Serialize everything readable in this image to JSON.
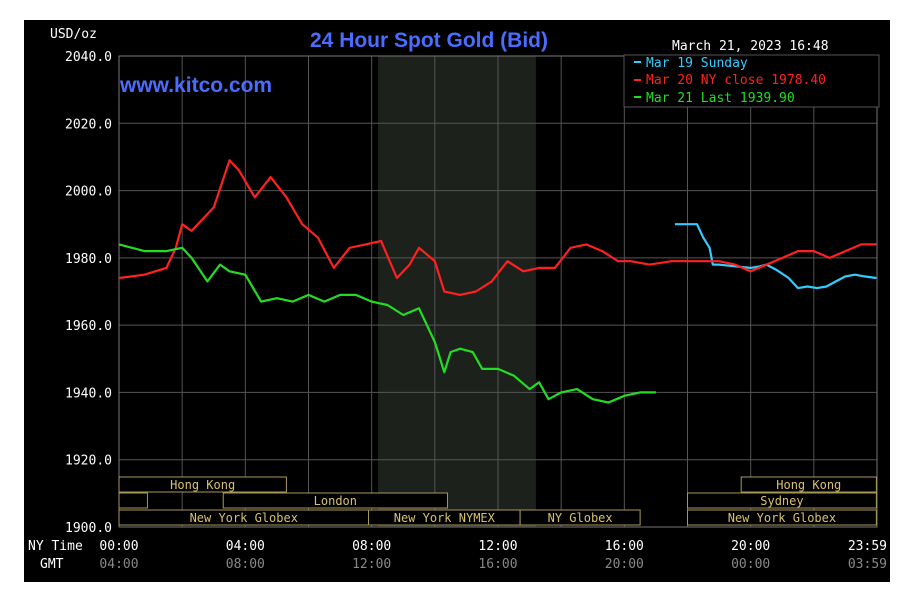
{
  "chart_data": {
    "type": "line",
    "title": "24 Hour Spot Gold (Bid)",
    "watermark": "www.kitco.com",
    "units_label": "USD/oz",
    "timestamp": "March 21, 2023 16:48",
    "ylim": [
      1900,
      2040
    ],
    "yticks": [
      "2040.0",
      "2020.0",
      "2000.0",
      "1980.0",
      "1960.0",
      "1940.0",
      "1920.0",
      "1900.0"
    ],
    "xlim": [
      0,
      24
    ],
    "ny_time_label": "NY Time",
    "gmt_label": "GMT",
    "ny_time_ticks": [
      "00:00",
      "04:00",
      "08:00",
      "12:00",
      "16:00",
      "20:00",
      "23:59"
    ],
    "gmt_ticks": [
      "04:00",
      "08:00",
      "12:00",
      "16:00",
      "20:00",
      "00:00",
      "03:59"
    ],
    "colors": {
      "background": "#000000",
      "grid": "#555555",
      "title": "#4a6cff",
      "cyan": "#33ccff",
      "red": "#ff2020",
      "green": "#22dd22",
      "nymex_shade": "#1c211c",
      "session_text": "#d8c070",
      "session_border": "#a89858",
      "axis_text": "#ffffff",
      "gmt_text": "#888888"
    },
    "series": [
      {
        "name": "Mar 19 Sunday",
        "color": "#33ccff",
        "x": [
          17.6,
          18.3,
          18.5,
          18.7,
          18.8,
          19.0,
          19.5,
          20.0,
          20.3,
          20.5,
          20.8,
          21.2,
          21.5,
          21.8,
          22.1,
          22.4,
          22.7,
          23.0,
          23.3,
          23.6,
          23.98
        ],
        "y": [
          1990.0,
          1990.0,
          1986.0,
          1983.0,
          1978.0,
          1978.0,
          1977.5,
          1977.0,
          1977.5,
          1978.0,
          1976.5,
          1974.0,
          1971.0,
          1971.5,
          1971.0,
          1971.5,
          1973.0,
          1974.5,
          1975.0,
          1974.5,
          1974.0
        ]
      },
      {
        "name": "Mar 20 NY close 1978.40",
        "color": "#ff2020",
        "x": [
          0.0,
          0.8,
          1.5,
          1.8,
          2.0,
          2.3,
          2.6,
          3.0,
          3.5,
          3.8,
          4.3,
          4.8,
          5.3,
          5.8,
          6.3,
          6.8,
          7.3,
          7.8,
          8.3,
          8.8,
          9.2,
          9.5,
          10.0,
          10.3,
          10.8,
          11.3,
          11.8,
          12.3,
          12.8,
          13.3,
          13.8,
          14.3,
          14.8,
          15.3,
          15.8,
          16.2,
          16.8,
          17.5,
          18.5,
          19.0,
          19.5,
          20.0,
          20.5,
          21.0,
          21.5,
          22.0,
          22.5,
          23.0,
          23.5,
          23.98
        ],
        "y": [
          1974.0,
          1975.0,
          1977.0,
          1983.0,
          1990.0,
          1988.0,
          1991.0,
          1995.0,
          2009.0,
          2006.0,
          1998.0,
          2004.0,
          1998.0,
          1990.0,
          1986.0,
          1977.0,
          1983.0,
          1984.0,
          1985.0,
          1974.0,
          1978.0,
          1983.0,
          1979.0,
          1970.0,
          1969.0,
          1970.0,
          1973.0,
          1979.0,
          1976.0,
          1977.0,
          1977.0,
          1983.0,
          1984.0,
          1982.0,
          1979.0,
          1979.0,
          1978.0,
          1979.0,
          1979.0,
          1979.0,
          1978.0,
          1976.0,
          1978.0,
          1980.0,
          1982.0,
          1982.0,
          1980.0,
          1982.0,
          1984.0,
          1984.0
        ]
      },
      {
        "name": "Mar 21 Last 1939.90",
        "color": "#22dd22",
        "x": [
          0.0,
          0.8,
          1.5,
          2.0,
          2.3,
          2.8,
          3.2,
          3.5,
          4.0,
          4.5,
          5.0,
          5.5,
          6.0,
          6.5,
          7.0,
          7.5,
          8.0,
          8.5,
          9.0,
          9.5,
          10.0,
          10.3,
          10.5,
          10.8,
          11.2,
          11.5,
          12.0,
          12.5,
          13.0,
          13.3,
          13.6,
          14.0,
          14.5,
          15.0,
          15.5,
          16.0,
          16.5,
          17.0
        ],
        "y": [
          1984.0,
          1982.0,
          1982.0,
          1983.0,
          1980.0,
          1973.0,
          1978.0,
          1976.0,
          1975.0,
          1967.0,
          1968.0,
          1967.0,
          1969.0,
          1967.0,
          1969.0,
          1969.0,
          1967.0,
          1966.0,
          1963.0,
          1965.0,
          1955.0,
          1946.0,
          1952.0,
          1953.0,
          1952.0,
          1947.0,
          1947.0,
          1945.0,
          1941.0,
          1943.0,
          1938.0,
          1940.0,
          1941.0,
          1938.0,
          1937.0,
          1939.0,
          1940.0,
          1940.0
        ]
      }
    ],
    "nymex_shade": [
      8.2,
      13.2
    ],
    "sessions": {
      "row1": [
        {
          "label": "Hong Kong",
          "start": 0.0,
          "end": 5.3
        },
        {
          "label": "Hong Kong",
          "start": 19.7,
          "end": 23.98
        }
      ],
      "row2": [
        {
          "label": "",
          "start": 0.0,
          "end": 0.9
        },
        {
          "label": "London",
          "start": 3.3,
          "end": 10.4
        },
        {
          "label": "Sydney",
          "start": 18.0,
          "end": 23.98
        }
      ],
      "row3": [
        {
          "label": "New York Globex",
          "start": 0.0,
          "end": 7.9
        },
        {
          "label": "New York NYMEX",
          "start": 7.9,
          "end": 12.7
        },
        {
          "label": "NY Globex",
          "start": 12.7,
          "end": 16.5
        },
        {
          "label": "New York Globex",
          "start": 18.0,
          "end": 23.98
        }
      ]
    }
  }
}
